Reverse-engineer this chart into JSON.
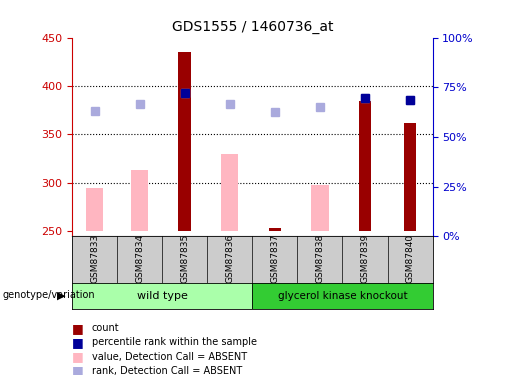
{
  "title": "GDS1555 / 1460736_at",
  "samples": [
    "GSM87833",
    "GSM87834",
    "GSM87835",
    "GSM87836",
    "GSM87837",
    "GSM87838",
    "GSM87839",
    "GSM87840"
  ],
  "count_values": [
    null,
    null,
    435,
    null,
    253,
    null,
    385,
    362
  ],
  "pink_bar_values": [
    295,
    313,
    null,
    330,
    null,
    298,
    null,
    null
  ],
  "blue_square_values": [
    374,
    381,
    393,
    381,
    373,
    378,
    388,
    386
  ],
  "dark_blue_square_values": [
    null,
    null,
    393,
    null,
    null,
    null,
    388,
    386
  ],
  "ylim_left": [
    245,
    450
  ],
  "ylim_right": [
    0,
    100
  ],
  "yticks_left": [
    250,
    300,
    350,
    400,
    450
  ],
  "yticks_right": [
    0,
    25,
    50,
    75,
    100
  ],
  "ytick_labels_right": [
    "0%",
    "25%",
    "50%",
    "75%",
    "100%"
  ],
  "grid_lines": [
    300,
    350,
    400
  ],
  "group1_label": "wild type",
  "group2_label": "glycerol kinase knockout",
  "group1_indices": [
    0,
    1,
    2,
    3
  ],
  "group2_indices": [
    4,
    5,
    6,
    7
  ],
  "genotype_label": "genotype/variation",
  "legend_labels": [
    "count",
    "percentile rank within the sample",
    "value, Detection Call = ABSENT",
    "rank, Detection Call = ABSENT"
  ],
  "bar_bottom": 250,
  "count_color": "#990000",
  "pink_color": "#FFB6C1",
  "blue_sq_color": "#AAAADD",
  "dark_blue_sq_color": "#000099",
  "bg_color": "#FFFFFF",
  "left_axis_color": "#CC0000",
  "right_axis_color": "#0000CC",
  "group1_color": "#AAFFAA",
  "group2_color": "#33CC33",
  "label_bg_color": "#CCCCCC"
}
